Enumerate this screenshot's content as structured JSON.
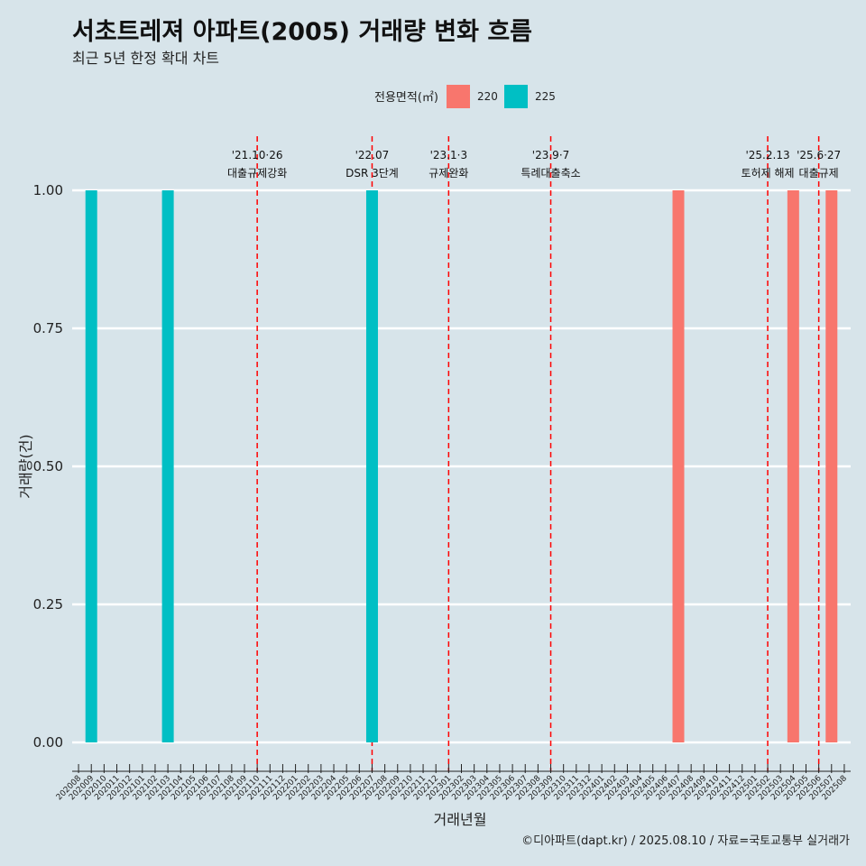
{
  "title": "서초트레져 아파트(2005) 거래량 변화 흐름",
  "subtitle": "최근 5년 한정 확대 차트",
  "caption": "©디아파트(dapt.kr) / 2025.08.10 / 자료=국토교통부 실거래가",
  "colors": {
    "background": "#d7e4ea",
    "grid": "#ffffff",
    "series_220": "#f8766d",
    "series_225": "#00bfc4",
    "event_line": "#ff0000"
  },
  "chart_data": {
    "type": "bar",
    "title": "서초트레져 아파트(2005) 거래량 변화 흐름",
    "subtitle": "최근 5년 한정 확대 차트",
    "xlabel": "거래년월",
    "ylabel": "거래량(건)",
    "ylim": [
      0,
      1
    ],
    "yticks": [
      "0.00",
      "0.25",
      "0.50",
      "0.75",
      "1.00"
    ],
    "grid": true,
    "legend": {
      "title": "전용면적(㎡)",
      "position": "top",
      "entries": [
        {
          "name": "220",
          "color": "#f8766d"
        },
        {
          "name": "225",
          "color": "#00bfc4"
        }
      ]
    },
    "categories": [
      "202008",
      "202009",
      "202010",
      "202011",
      "202012",
      "202101",
      "202102",
      "202103",
      "202104",
      "202105",
      "202106",
      "202107",
      "202108",
      "202109",
      "202110",
      "202111",
      "202112",
      "202201",
      "202202",
      "202203",
      "202204",
      "202205",
      "202206",
      "202207",
      "202208",
      "202209",
      "202210",
      "202211",
      "202212",
      "202301",
      "202302",
      "202303",
      "202304",
      "202305",
      "202306",
      "202307",
      "202308",
      "202309",
      "202310",
      "202311",
      "202312",
      "202401",
      "202402",
      "202403",
      "202404",
      "202405",
      "202406",
      "202407",
      "202408",
      "202409",
      "202410",
      "202411",
      "202412",
      "202501",
      "202502",
      "202503",
      "202504",
      "202505",
      "202506",
      "202507",
      "202508"
    ],
    "series": [
      {
        "name": "220",
        "color": "#f8766d",
        "points": [
          {
            "x": "202407",
            "y": 1
          },
          {
            "x": "202504",
            "y": 1
          },
          {
            "x": "202507",
            "y": 1
          }
        ]
      },
      {
        "name": "225",
        "color": "#00bfc4",
        "points": [
          {
            "x": "202009",
            "y": 1
          },
          {
            "x": "202103",
            "y": 1
          },
          {
            "x": "202207",
            "y": 1
          }
        ]
      }
    ],
    "annotations": [
      {
        "x": "202110",
        "date": "'21.10·26",
        "label": "대출규제강화",
        "small": false
      },
      {
        "x": "202207",
        "date": "'22.07",
        "label": "DSR 3단계",
        "small": false
      },
      {
        "x": "202301",
        "date": "'23.1·3",
        "label": "규제완화",
        "small": false
      },
      {
        "x": "202309",
        "date": "'23.9·7",
        "label": "특례대출축소",
        "small": false
      },
      {
        "x": "202502",
        "date": "'25.2.13",
        "label": "토허제 해제",
        "small": true
      },
      {
        "x": "202506",
        "date": "'25.6·27",
        "label": "대출규제",
        "small": false
      }
    ]
  }
}
